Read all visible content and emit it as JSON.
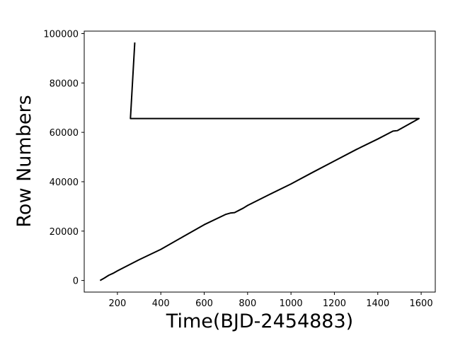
{
  "chart_data": {
    "type": "line",
    "title": "",
    "xlabel": "Time(BJD-2454883)",
    "ylabel": "Row Numbers",
    "xlim": [
      47,
      1665
    ],
    "ylim": [
      -4700,
      101000
    ],
    "xticks": [
      200,
      400,
      600,
      800,
      1000,
      1200,
      1400,
      1600
    ],
    "yticks": [
      0,
      20000,
      40000,
      60000,
      80000,
      100000
    ],
    "grid": false,
    "legend": "none",
    "line_color": "#000000",
    "series": [
      {
        "x": [
          120,
          140,
          160,
          180,
          200,
          300,
          400,
          500,
          600,
          700,
          720,
          740,
          760,
          780,
          800,
          900,
          1000,
          1100,
          1200,
          1300,
          1400,
          1470,
          1490,
          1590,
          260,
          280
        ],
        "y": [
          0,
          1000,
          2100,
          2900,
          3900,
          8400,
          12600,
          17600,
          22600,
          26800,
          27300,
          27500,
          28400,
          29300,
          30400,
          34800,
          39100,
          43800,
          48400,
          53000,
          57300,
          60500,
          60700,
          65600,
          65600,
          96400
        ]
      }
    ]
  }
}
